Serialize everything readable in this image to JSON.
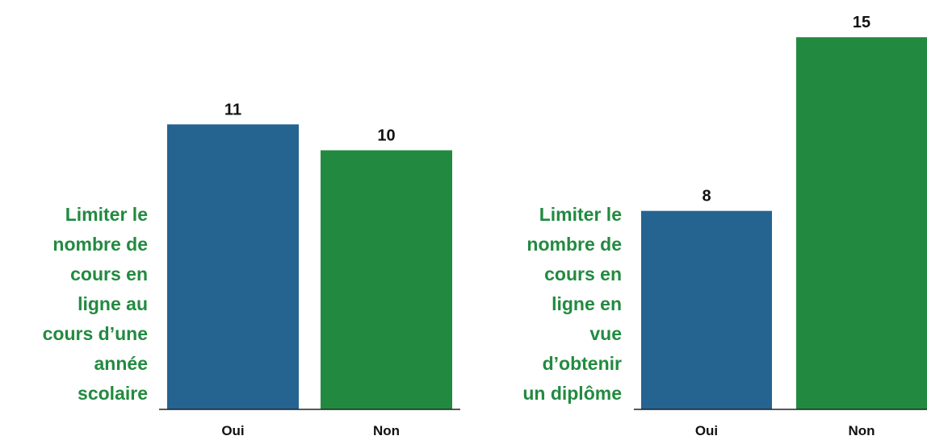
{
  "chart_data": [
    {
      "type": "bar",
      "label_lines": [
        "Limiter le",
        "nombre de",
        "cours en",
        "ligne au",
        "cours d’une",
        "année",
        "scolaire"
      ],
      "categories": [
        "Oui",
        "Non"
      ],
      "values": [
        11,
        10
      ],
      "colors": [
        "#256391",
        "#228a40"
      ],
      "ylim": [
        0,
        15.8
      ]
    },
    {
      "type": "bar",
      "label_lines": [
        "Limiter le",
        "nombre de",
        "cours en",
        "ligne en",
        "vue",
        "d’obtenir",
        "un diplôme"
      ],
      "categories": [
        "Oui",
        "Non"
      ],
      "values": [
        8,
        15
      ],
      "colors": [
        "#256391",
        "#228a40"
      ],
      "ylim": [
        0,
        16.5
      ]
    }
  ]
}
